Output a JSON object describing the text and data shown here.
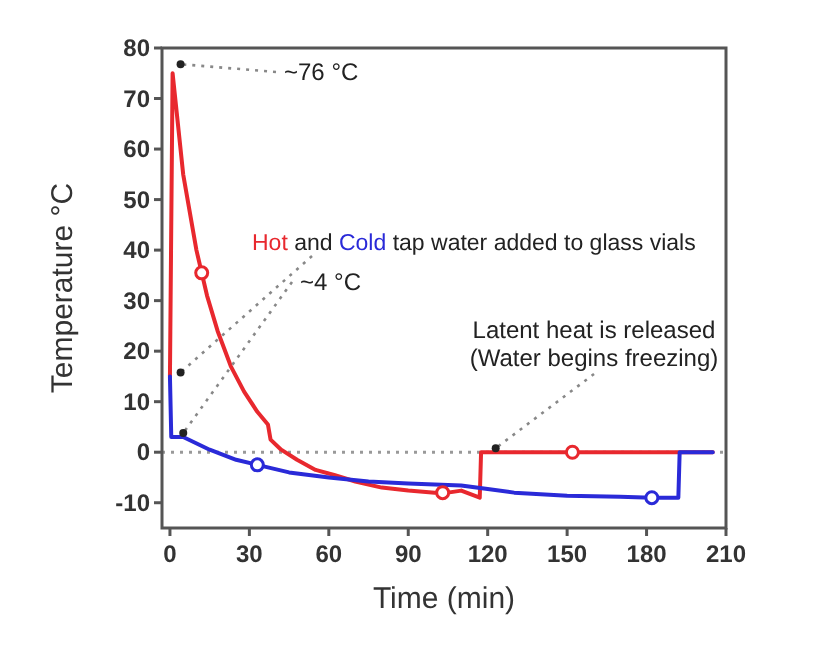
{
  "chart_data": {
    "type": "line",
    "xlabel": "Time (min)",
    "ylabel": "Temperature °C",
    "xlim": [
      -3,
      210
    ],
    "xticks": [
      0,
      30,
      60,
      90,
      120,
      150,
      180,
      210
    ],
    "ylim": [
      -15,
      80
    ],
    "yticks": [
      -10,
      0,
      10,
      20,
      30,
      40,
      50,
      60,
      70,
      80
    ],
    "line_style": "solid",
    "marker": "none",
    "grid": false,
    "series": [
      {
        "name": "Hot",
        "color": "#e8282e",
        "x": [
          0,
          1,
          5,
          10,
          14,
          18,
          23,
          28,
          33,
          37,
          38,
          42,
          48,
          55,
          62,
          70,
          80,
          90,
          100,
          105,
          110,
          117,
          117.5,
          130,
          150,
          170,
          190,
          191.5,
          192,
          205
        ],
        "values": [
          15,
          75,
          55,
          40,
          31,
          24,
          17,
          12,
          8,
          5.5,
          2.5,
          0.5,
          -1.5,
          -3.5,
          -4.5,
          -5.8,
          -7,
          -7.6,
          -8,
          -8,
          -7.6,
          -9,
          0,
          0,
          0,
          0,
          0,
          0,
          0,
          0
        ]
      },
      {
        "name": "Cold",
        "color": "#2a2ad8",
        "x": [
          0,
          0.5,
          5,
          15,
          25,
          33,
          45,
          60,
          75,
          90,
          100,
          110,
          120,
          130,
          150,
          170,
          182,
          192,
          192.5,
          205
        ],
        "values": [
          15,
          3,
          3,
          0.5,
          -1.5,
          -2.5,
          -4,
          -5,
          -5.8,
          -6.2,
          -6.4,
          -6.6,
          -7.3,
          -8,
          -8.6,
          -8.8,
          -9,
          -9,
          0,
          0
        ]
      },
      {
        "type": "scatter",
        "color": "#e8282e",
        "x": [
          12,
          103,
          152
        ],
        "values": [
          35.5,
          -8,
          0
        ],
        "marker": "circle"
      },
      {
        "type": "scatter",
        "color": "#2a2ad8",
        "x": [
          33,
          182
        ],
        "values": [
          -2.5,
          -9
        ],
        "marker": "circle"
      }
    ],
    "ref_lines": [
      {
        "axis": "y",
        "value": 0,
        "color": "#999999",
        "line_style": "dotted"
      }
    ],
    "annotations": [
      {
        "text": "~76 °C",
        "x": 1,
        "y": 76
      },
      {
        "text": "~4 °C",
        "x": 2,
        "y": 3
      },
      {
        "text": "and",
        "x": 1,
        "y": 15
      },
      "tap water added to glass vials",
      {
        "text": "Latent heat is released\n(Water begins freezing)",
        "x": 120,
        "y": 0
      }
    ]
  }
}
